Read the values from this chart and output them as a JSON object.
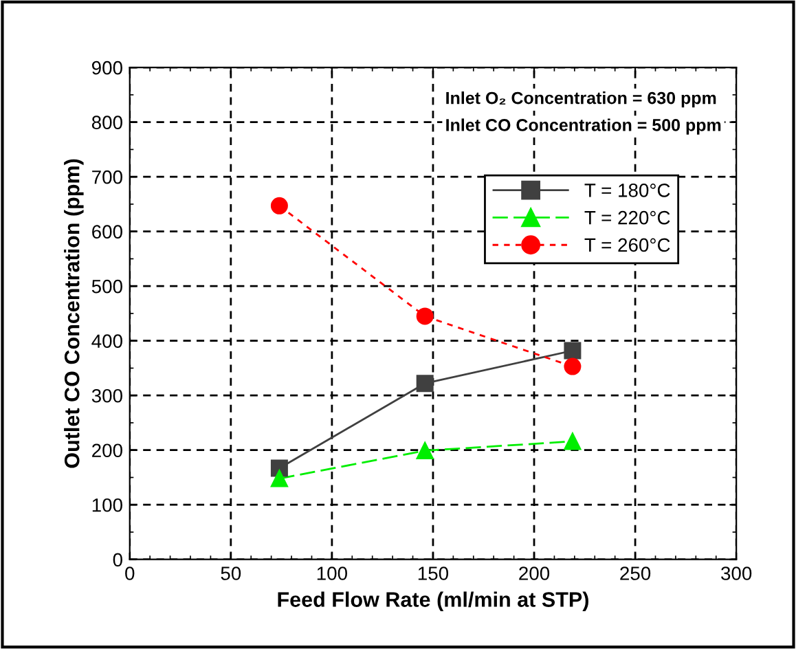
{
  "chart_data": {
    "type": "line",
    "xlabel": "Feed Flow Rate (ml/min at STP)",
    "ylabel": "Outlet CO Concentration (ppm)",
    "annotations": [
      "Inlet O₂ Concentration = 630 ppm",
      "Inlet CO Concentration = 500 ppm"
    ],
    "xlim": [
      0,
      300
    ],
    "xticks": [
      0,
      50,
      100,
      150,
      200,
      250,
      300
    ],
    "ylim": [
      0,
      900
    ],
    "yticks": [
      0,
      100,
      200,
      300,
      400,
      500,
      600,
      700,
      800,
      900
    ],
    "grid": true,
    "legend": "top right",
    "series": [
      {
        "name": "T = 180°C",
        "color": "#404040",
        "marker": "square",
        "line_style": "solid",
        "x": [
          74,
          146,
          219
        ],
        "values": [
          167,
          322,
          382
        ]
      },
      {
        "name": "T = 220°C",
        "color": "#00ee00",
        "marker": "triangle",
        "line_style": "dashed",
        "x": [
          74,
          146,
          219
        ],
        "values": [
          148,
          199,
          216
        ]
      },
      {
        "name": "T = 260°C",
        "color": "#ff0000",
        "marker": "circle",
        "line_style": "dotted",
        "x": [
          74,
          146,
          219
        ],
        "values": [
          647,
          445,
          353
        ]
      }
    ]
  }
}
